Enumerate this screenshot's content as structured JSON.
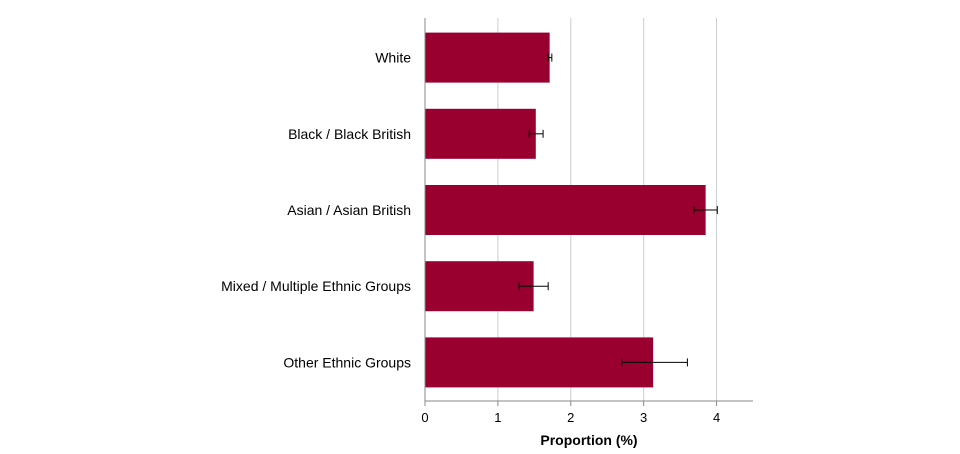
{
  "chart_data": {
    "type": "bar",
    "orientation": "horizontal",
    "categories": [
      "White",
      "Black / Black British",
      "Asian / Asian British",
      "Mixed / Multiple Ethnic Groups",
      "Other Ethnic Groups"
    ],
    "values": [
      1.71,
      1.52,
      3.85,
      1.49,
      3.13
    ],
    "error_low": [
      1.69,
      1.43,
      3.69,
      1.29,
      2.7
    ],
    "error_high": [
      1.74,
      1.62,
      4.01,
      1.69,
      3.6
    ],
    "xlabel": "Proportion (%)",
    "ylabel": "",
    "xlim": [
      0,
      4.5
    ],
    "xticks": [
      "0",
      "1",
      "2",
      "3",
      "4"
    ],
    "grid": "vertical",
    "colors": {
      "bar": "#990030",
      "grid": "#cccccc",
      "axis": "#888888",
      "error_bar": "#000000"
    }
  }
}
